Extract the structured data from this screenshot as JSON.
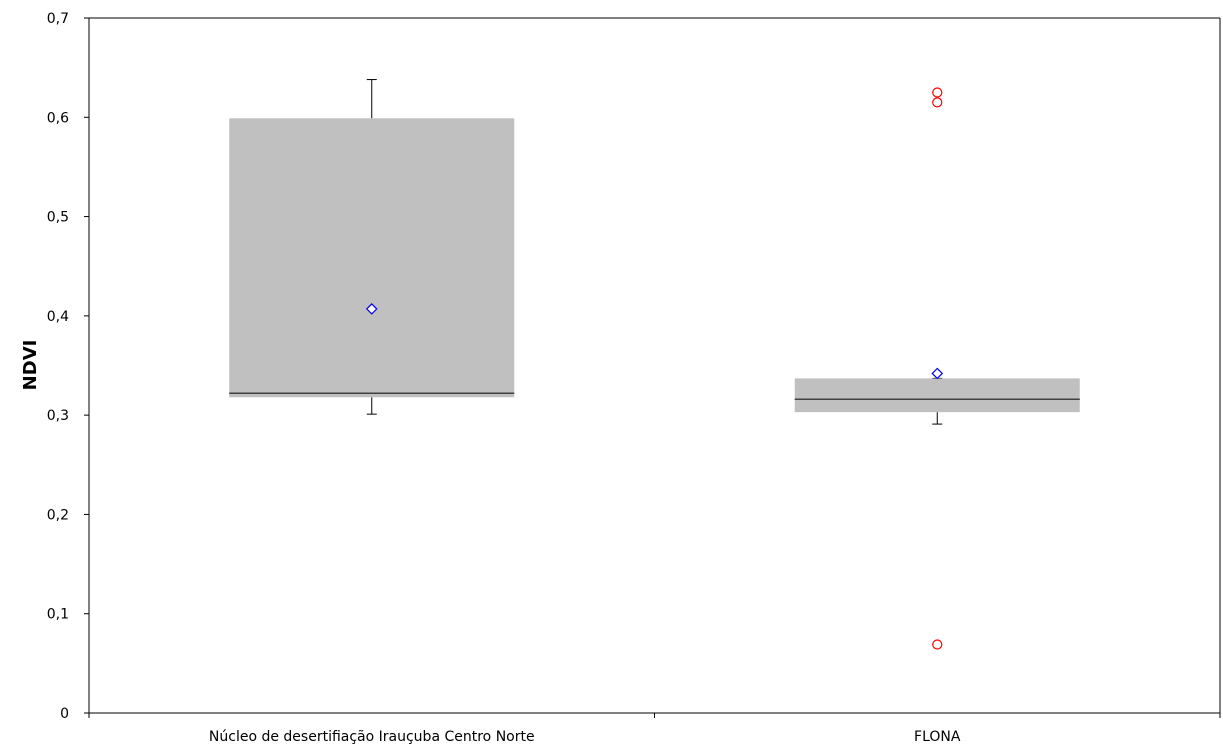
{
  "chart_data": {
    "type": "box",
    "ylabel": "NDVI",
    "ylim": [
      0,
      0.7
    ],
    "y_ticks": [
      "0",
      "0,1",
      "0,2",
      "0,3",
      "0,4",
      "0,5",
      "0,6",
      "0,7"
    ],
    "y_tick_values": [
      0,
      0.1,
      0.2,
      0.3,
      0.4,
      0.5,
      0.6,
      0.7
    ],
    "categories": [
      "Núcleo de desertifiação Irauçuba Centro Norte",
      "FLONA"
    ],
    "boxes": [
      {
        "category": "Núcleo de desertifiação Irauçuba Centro Norte",
        "whisker_low": 0.301,
        "q1": 0.318,
        "median": 0.322,
        "q3": 0.599,
        "whisker_high": 0.638,
        "mean": 0.407,
        "outliers": []
      },
      {
        "category": "FLONA",
        "whisker_low": 0.291,
        "q1": 0.303,
        "median": 0.316,
        "q3": 0.337,
        "whisker_high": 0.337,
        "mean": 0.342,
        "outliers": [
          0.625,
          0.615,
          0.069
        ]
      }
    ],
    "grid": false,
    "legend": "none",
    "colors": {
      "box_fill": "#c0c0c0",
      "median": "#404040",
      "mean_marker": "#0000ff",
      "outlier": "#ff0000",
      "axis": "#000000"
    }
  }
}
